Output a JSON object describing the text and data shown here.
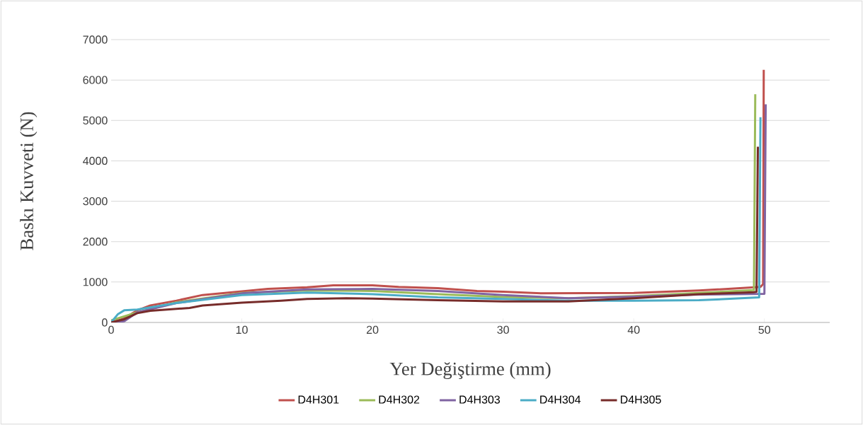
{
  "chart_data": {
    "type": "line",
    "xlabel": "Yer Değiştirme (mm)",
    "ylabel": "Baskı Kuvveti (N)",
    "xlim": [
      0,
      55
    ],
    "xticks": [
      0,
      10,
      20,
      30,
      40,
      50
    ],
    "ylim": [
      0,
      7000
    ],
    "yticks": [
      0,
      1000,
      2000,
      3000,
      4000,
      5000,
      6000,
      7000
    ],
    "grid": "y",
    "legend": "bottom",
    "marker": "none",
    "line_style": "solid",
    "series": [
      {
        "name": "D4H301",
        "color": "#c0504d",
        "x": [
          0,
          1,
          2,
          3,
          5,
          7,
          10,
          12,
          15,
          17,
          20,
          22,
          25,
          28,
          30,
          33,
          40,
          45,
          49.7,
          49.9,
          49.95
        ],
        "values": [
          0,
          100,
          300,
          420,
          540,
          680,
          770,
          830,
          870,
          920,
          920,
          880,
          850,
          780,
          760,
          720,
          730,
          790,
          880,
          950,
          6250
        ]
      },
      {
        "name": "D4H302",
        "color": "#9bbb59",
        "x": [
          0,
          2,
          5,
          10,
          15,
          20,
          25,
          30,
          35,
          40,
          45,
          49.2,
          49.3
        ],
        "values": [
          50,
          250,
          500,
          730,
          790,
          780,
          700,
          630,
          600,
          650,
          730,
          800,
          5650
        ]
      },
      {
        "name": "D4H303",
        "color": "#8064a2",
        "x": [
          0,
          1,
          2,
          5,
          10,
          15,
          20,
          25,
          30,
          35,
          40,
          45,
          50,
          50.1
        ],
        "values": [
          0,
          30,
          250,
          480,
          720,
          820,
          830,
          780,
          680,
          600,
          640,
          690,
          710,
          5400
        ]
      },
      {
        "name": "D4H304",
        "color": "#4bacc6",
        "x": [
          0,
          0.5,
          1,
          2,
          5,
          10,
          15,
          20,
          25,
          30,
          35,
          40,
          45,
          49.6,
          49.7
        ],
        "values": [
          0,
          200,
          300,
          320,
          480,
          680,
          740,
          700,
          620,
          580,
          540,
          540,
          550,
          620,
          5080
        ]
      },
      {
        "name": "D4H305",
        "color": "#772c2a",
        "x": [
          0,
          1,
          2,
          3,
          6,
          7,
          10,
          13,
          15,
          18,
          20,
          25,
          30,
          35,
          40,
          45,
          49.2,
          49.4,
          49.5
        ],
        "values": [
          0,
          80,
          230,
          290,
          360,
          420,
          490,
          540,
          580,
          600,
          590,
          550,
          520,
          520,
          600,
          700,
          750,
          760,
          4350
        ]
      }
    ]
  }
}
